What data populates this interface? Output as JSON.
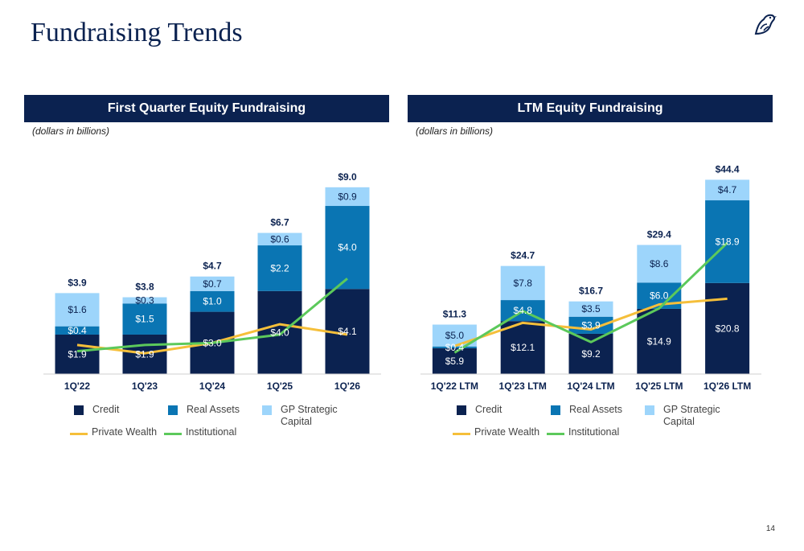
{
  "page": {
    "title": "Fundraising Trends",
    "page_number": "14",
    "logo_icon": "bird-icon"
  },
  "colors": {
    "navy": "#0b2250",
    "credit": "#0b2250",
    "real_assets": "#0a75b3",
    "gp_strategic": "#9dd5fb",
    "private_wealth": "#f5bf3a",
    "institutional": "#5cc95b"
  },
  "legend": {
    "credit": "Credit",
    "real_assets": "Real Assets",
    "gp_strategic_line1": "GP Strategic",
    "gp_strategic_line2": "Capital",
    "private_wealth": "Private Wealth",
    "institutional": "Institutional"
  },
  "chart_data": [
    {
      "type": "bar",
      "stacked": true,
      "title": "First Quarter Equity Fundraising",
      "subtitle": "(dollars in billions)",
      "categories": [
        "1Q'22",
        "1Q'23",
        "1Q'24",
        "1Q'25",
        "1Q'26"
      ],
      "ylim": [
        0,
        10
      ],
      "series": [
        {
          "name": "Credit",
          "values": [
            1.9,
            1.9,
            3.0,
            4.0,
            4.1
          ],
          "labels": [
            "$1.9",
            "$1.9",
            "$3.0",
            "$4.0",
            "$4.1"
          ]
        },
        {
          "name": "Real Assets",
          "values": [
            0.4,
            1.5,
            1.0,
            2.2,
            4.0
          ],
          "labels": [
            "$0.4",
            "$1.5",
            "$1.0",
            "$2.2",
            "$4.0"
          ]
        },
        {
          "name": "GP Strategic Capital",
          "values": [
            1.6,
            0.3,
            0.7,
            0.6,
            0.9
          ],
          "labels": [
            "$1.6",
            "$0.3",
            "$0.7",
            "$0.6",
            "$0.9"
          ]
        }
      ],
      "totals": [
        "$3.9",
        "$3.8",
        "$4.7",
        "$6.7",
        "$9.0"
      ],
      "lines": [
        {
          "name": "Private Wealth",
          "values": [
            1.4,
            1.0,
            1.5,
            2.4,
            1.9
          ]
        },
        {
          "name": "Institutional",
          "values": [
            1.1,
            1.4,
            1.5,
            1.9,
            4.6
          ]
        }
      ],
      "legend_position": "bottom",
      "grid": false
    },
    {
      "type": "bar",
      "stacked": true,
      "title": "LTM Equity Fundraising",
      "subtitle": "(dollars in billions)",
      "categories": [
        "1Q'22 LTM",
        "1Q'23 LTM",
        "1Q'24 LTM",
        "1Q'25 LTM",
        "1Q'26 LTM"
      ],
      "ylim": [
        0,
        50
      ],
      "series": [
        {
          "name": "Credit",
          "values": [
            5.9,
            12.1,
            9.2,
            14.9,
            20.8
          ],
          "labels": [
            "$5.9",
            "$12.1",
            "$9.2",
            "$14.9",
            "$20.8"
          ]
        },
        {
          "name": "Real Assets",
          "values": [
            0.4,
            4.8,
            3.9,
            6.0,
            18.9
          ],
          "labels": [
            "$0.4",
            "$4.8",
            "$3.9",
            "$6.0",
            "$18.9"
          ]
        },
        {
          "name": "GP Strategic Capital",
          "values": [
            5.0,
            7.8,
            3.5,
            8.6,
            4.7
          ],
          "labels": [
            "$5.0",
            "$7.8",
            "$3.5",
            "$8.6",
            "$4.7"
          ]
        }
      ],
      "totals": [
        "$11.3",
        "$24.7",
        "$16.7",
        "$29.4",
        "$44.4"
      ],
      "lines": [
        {
          "name": "Private Wealth",
          "values": [
            6.4,
            11.7,
            10.2,
            15.9,
            17.2
          ]
        },
        {
          "name": "Institutional",
          "values": [
            4.9,
            14.4,
            7.3,
            15.0,
            30.0
          ]
        }
      ],
      "legend_position": "bottom",
      "grid": false
    }
  ]
}
